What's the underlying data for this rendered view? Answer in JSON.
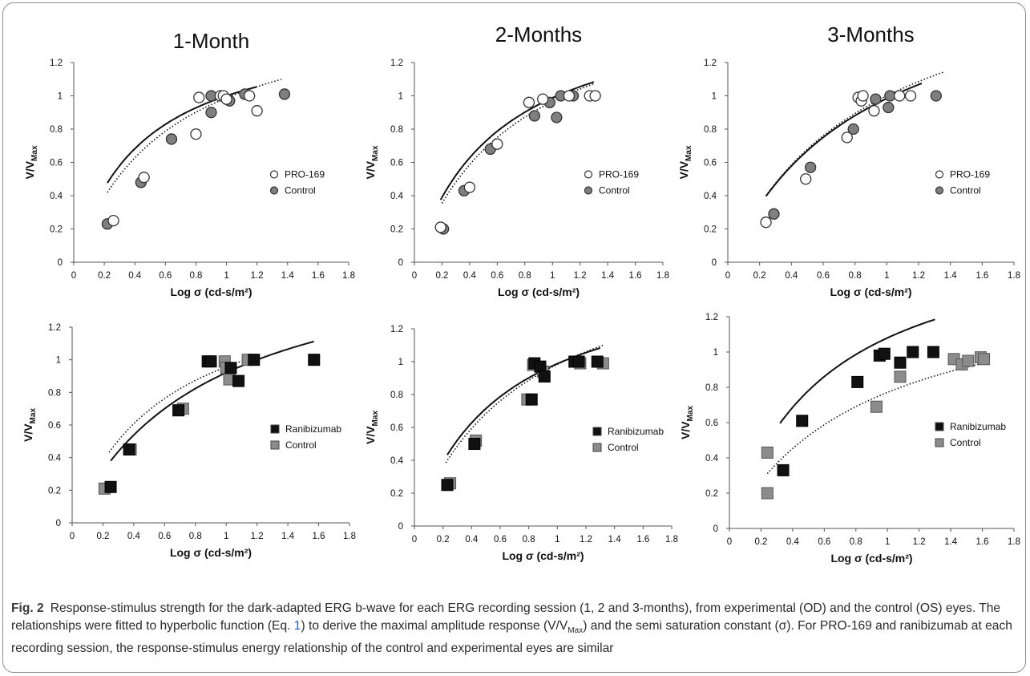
{
  "chart_data": [
    {
      "type": "scatter",
      "title": "1-Month",
      "xlabel": "Log σ (cd-s/m²)",
      "ylabel": "V/VMax",
      "xlim": [
        0,
        1.8
      ],
      "ylim": [
        0,
        1.2
      ],
      "xticks": [
        "0",
        "0.2",
        "0.4",
        "0.6",
        "0.8",
        "1",
        "1.2",
        "1.4",
        "1.6",
        "1.8"
      ],
      "yticks": [
        "0",
        "0.2",
        "0.4",
        "0.6",
        "0.8",
        "1",
        "1.2"
      ],
      "legend": "center-right",
      "series": [
        {
          "name": "PRO-169",
          "marker": "circle",
          "fill": "#ffffff",
          "x": [
            0.26,
            0.46,
            0.8,
            0.82,
            0.96,
            0.98,
            1.0,
            1.15,
            1.2
          ],
          "y": [
            0.25,
            0.51,
            0.77,
            0.99,
            1.0,
            1.0,
            0.98,
            1.0,
            0.91
          ],
          "fit": {
            "style": "solid",
            "x": [
              0.22,
              1.2
            ],
            "vmax": 1.45,
            "sigma": 0.45
          }
        },
        {
          "name": "Control",
          "marker": "circle",
          "fill": "#7f7f7f",
          "x": [
            0.22,
            0.44,
            0.64,
            0.9,
            0.9,
            1.02,
            1.12,
            1.38
          ],
          "y": [
            0.23,
            0.48,
            0.74,
            0.9,
            1.0,
            0.97,
            1.01,
            1.01
          ],
          "fit": {
            "style": "dotted",
            "x": [
              0.22,
              1.36
            ],
            "vmax": 1.6,
            "sigma": 0.62
          }
        }
      ]
    },
    {
      "type": "scatter",
      "title": "2-Months",
      "xlabel": "Log σ (cd-s/m²)",
      "ylabel": "V/VMax",
      "xlim": [
        0,
        1.8
      ],
      "ylim": [
        0,
        1.2
      ],
      "xticks": [
        "0",
        "0.2",
        "0.4",
        "0.6",
        "0.8",
        "1",
        "1.2",
        "1.4",
        "1.6",
        "1.8"
      ],
      "yticks": [
        "0",
        "0.2",
        "0.4",
        "0.6",
        "0.8",
        "1",
        "1.2"
      ],
      "legend": "center-right",
      "series": [
        {
          "name": "PRO-169",
          "marker": "circle",
          "fill": "#ffffff",
          "x": [
            0.19,
            0.4,
            0.6,
            0.83,
            0.93,
            1.12,
            1.27,
            1.31
          ],
          "y": [
            0.21,
            0.45,
            0.71,
            0.96,
            0.98,
            1.0,
            1.0,
            1.0
          ],
          "fit": {
            "style": "solid",
            "x": [
              0.19,
              1.3
            ],
            "vmax": 1.6,
            "sigma": 0.62
          }
        },
        {
          "name": "Control",
          "marker": "circle",
          "fill": "#7f7f7f",
          "x": [
            0.21,
            0.36,
            0.55,
            0.87,
            0.98,
            1.03,
            1.06,
            1.15
          ],
          "y": [
            0.2,
            0.43,
            0.68,
            0.88,
            0.96,
            0.87,
            1.0,
            1.0
          ],
          "fit": {
            "style": "dotted",
            "x": [
              0.2,
              1.3
            ],
            "vmax": 1.7,
            "sigma": 0.76
          }
        }
      ]
    },
    {
      "type": "scatter",
      "title": "3-Months",
      "xlabel": "Log σ (cd-s/m²)",
      "ylabel": "V/VMax",
      "xlim": [
        0,
        1.8
      ],
      "ylim": [
        0,
        1.2
      ],
      "xticks": [
        "0",
        "0.2",
        "0.4",
        "0.6",
        "0.8",
        "1",
        "1.2",
        "1.4",
        "1.6",
        "1.8"
      ],
      "yticks": [
        "0",
        "0.2",
        "0.4",
        "0.6",
        "0.8",
        "1",
        "1.2"
      ],
      "legend": "center-right",
      "series": [
        {
          "name": "PRO-169",
          "marker": "circle",
          "fill": "#ffffff",
          "x": [
            0.24,
            0.49,
            0.75,
            0.82,
            0.84,
            0.85,
            0.92,
            1.08,
            1.15
          ],
          "y": [
            0.24,
            0.5,
            0.75,
            0.99,
            0.97,
            1.0,
            0.91,
            1.0,
            1.0
          ],
          "fit": {
            "style": "solid",
            "x": [
              0.24,
              1.22
            ],
            "vmax": 1.85,
            "sigma": 0.88
          }
        },
        {
          "name": "Control",
          "marker": "circle",
          "fill": "#7f7f7f",
          "x": [
            0.29,
            0.52,
            0.79,
            0.93,
            1.01,
            1.02,
            1.31
          ],
          "y": [
            0.29,
            0.57,
            0.8,
            0.98,
            0.93,
            1.0,
            1.0
          ],
          "fit": {
            "style": "dotted",
            "x": [
              0.24,
              1.36
            ],
            "vmax": 1.9,
            "sigma": 0.9
          }
        }
      ]
    },
    {
      "type": "scatter",
      "title": "",
      "xlabel": "Log σ (cd-s/m²)",
      "ylabel": "V/VMax",
      "xlim": [
        0,
        1.8
      ],
      "ylim": [
        0,
        1.2
      ],
      "xticks": [
        "0",
        "0.2",
        "0.4",
        "0.6",
        "0.8",
        "1",
        "1.2",
        "1.4",
        "1.6",
        "1.8"
      ],
      "yticks": [
        "0",
        "0.2",
        "0.4",
        "0.6",
        "0.8",
        "1",
        "1.2"
      ],
      "legend": "center-right",
      "series": [
        {
          "name": "Ranibizumab",
          "marker": "square",
          "fill": "#111111",
          "x": [
            0.25,
            0.37,
            0.69,
            0.88,
            0.9,
            1.03,
            1.08,
            1.18,
            1.57
          ],
          "y": [
            0.22,
            0.45,
            0.69,
            0.99,
            0.99,
            0.95,
            0.87,
            1.0,
            1.0
          ],
          "fit": {
            "style": "solid",
            "x": [
              0.25,
              1.57
            ],
            "vmax": 1.75,
            "sigma": 0.9
          }
        },
        {
          "name": "Control",
          "marker": "square",
          "fill": "#8c8c8c",
          "x": [
            0.21,
            0.38,
            0.72,
            0.99,
            1.0,
            1.02,
            1.14
          ],
          "y": [
            0.21,
            0.45,
            0.7,
            0.99,
            0.95,
            0.88,
            1.0
          ],
          "fit": {
            "style": "dotted",
            "x": [
              0.24,
              1.2
            ],
            "vmax": 1.55,
            "sigma": 0.62
          }
        }
      ]
    },
    {
      "type": "scatter",
      "title": "",
      "xlabel": "Log σ (cd-s/m²)",
      "ylabel": "V/VMax",
      "xlim": [
        0,
        1.8
      ],
      "ylim": [
        0,
        1.2
      ],
      "xticks": [
        "0",
        "0.2",
        "0.4",
        "0.6",
        "0.8",
        "1",
        "1.2",
        "1.4",
        "1.6",
        "1.8"
      ],
      "yticks": [
        "0",
        "0.2",
        "0.4",
        "0.6",
        "0.8",
        "1",
        "1.2"
      ],
      "legend": "center-right",
      "series": [
        {
          "name": "Ranibizumab",
          "marker": "square",
          "fill": "#111111",
          "x": [
            0.23,
            0.42,
            0.82,
            0.84,
            0.88,
            0.91,
            1.12,
            1.15,
            1.28
          ],
          "y": [
            0.25,
            0.5,
            0.77,
            0.99,
            0.97,
            0.91,
            1.0,
            1.0,
            1.0
          ],
          "fit": {
            "style": "solid",
            "x": [
              0.23,
              1.3
            ],
            "vmax": 1.6,
            "sigma": 0.62
          }
        },
        {
          "name": "Control",
          "marker": "square",
          "fill": "#8c8c8c",
          "x": [
            0.25,
            0.43,
            0.79,
            0.83,
            0.9,
            1.16,
            1.32
          ],
          "y": [
            0.26,
            0.52,
            0.77,
            0.98,
            0.94,
            0.99,
            0.99
          ],
          "fit": {
            "style": "dotted",
            "x": [
              0.22,
              1.32
            ],
            "vmax": 1.75,
            "sigma": 0.78
          }
        }
      ]
    },
    {
      "type": "scatter",
      "title": "",
      "xlabel": "Log σ (cd-s/m²)",
      "ylabel": "V/VMax",
      "xlim": [
        0,
        1.8
      ],
      "ylim": [
        0,
        1.2
      ],
      "xticks": [
        "0",
        "0.2",
        "0.4",
        "0.6",
        "0.8",
        "1",
        "1.2",
        "1.4",
        "1.6",
        "1.8"
      ],
      "yticks": [
        "0",
        "0.2",
        "0.4",
        "0.6",
        "0.8",
        "1",
        "1.2"
      ],
      "legend": "center-right",
      "series": [
        {
          "name": "Ranibizumab",
          "marker": "square",
          "fill": "#111111",
          "x": [
            0.34,
            0.46,
            0.81,
            0.95,
            0.98,
            1.08,
            1.16,
            1.29
          ],
          "y": [
            0.33,
            0.61,
            0.83,
            0.98,
            0.99,
            0.94,
            1.0,
            1.0
          ],
          "fit": {
            "style": "solid",
            "x": [
              0.32,
              1.3
            ],
            "vmax": 1.75,
            "sigma": 0.62
          }
        },
        {
          "name": "Control",
          "marker": "square",
          "fill": "#8c8c8c",
          "x": [
            0.24,
            0.24,
            0.93,
            1.08,
            1.42,
            1.47,
            1.51,
            1.59,
            1.61
          ],
          "y": [
            0.43,
            0.2,
            0.69,
            0.86,
            0.96,
            0.93,
            0.95,
            0.97,
            0.96
          ],
          "fit": {
            "style": "dotted",
            "x": [
              0.24,
              1.6
            ],
            "vmax": 1.45,
            "sigma": 0.88
          }
        }
      ]
    }
  ],
  "caption": {
    "label": "Fig. 2",
    "text_1": "Response-stimulus strength for the dark-adapted ERG b-wave for each ERG recording session (1, 2 and 3-months), from experimental (OD) and the control (OS) eyes. The relationships were fitted to hyperbolic function (Eq. ",
    "eq_ref": "1",
    "text_2": ") to derive the maximal amplitude response (V/V",
    "vmax_sub": "Max",
    "text_3": ") and the semi saturation constant (σ). For PRO-169 and ranibizumab at each recording session, the response-stimulus energy relationship of the control and experimental eyes are similar"
  }
}
